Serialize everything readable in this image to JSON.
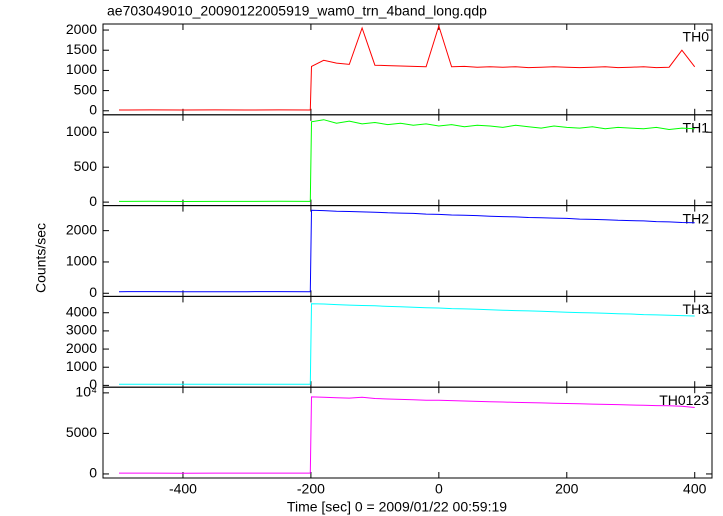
{
  "chart_data": [
    {
      "type": "line",
      "title": "ae703049010_20090122005919_wam0_trn_4band_long.qdp",
      "label": "TH0",
      "color": "#ff0000",
      "x": [
        -500,
        -450,
        -400,
        -350,
        -300,
        -250,
        -201,
        -199,
        -180,
        -160,
        -140,
        -120,
        -100,
        -80,
        -60,
        -40,
        -20,
        0,
        20,
        40,
        60,
        80,
        100,
        120,
        140,
        160,
        180,
        200,
        220,
        240,
        260,
        280,
        300,
        320,
        340,
        360,
        380,
        400
      ],
      "values": [
        20,
        22,
        19,
        21,
        20,
        22,
        20,
        1100,
        1250,
        1180,
        1150,
        2050,
        1130,
        1120,
        1110,
        1100,
        1090,
        2100,
        1090,
        1100,
        1080,
        1090,
        1080,
        1090,
        1070,
        1080,
        1090,
        1080,
        1070,
        1080,
        1090,
        1070,
        1080,
        1090,
        1070,
        1080,
        1500,
        1090
      ],
      "xlim": [
        -525,
        427
      ],
      "xticks": [
        -400,
        -200,
        0,
        200,
        400
      ],
      "ylim": [
        -100,
        2150
      ],
      "yticks": [
        0,
        500,
        1000,
        1500,
        2000
      ]
    },
    {
      "type": "line",
      "label": "TH1",
      "color": "#00ff00",
      "x": [
        -500,
        -450,
        -400,
        -350,
        -300,
        -250,
        -201,
        -199,
        -180,
        -160,
        -140,
        -120,
        -100,
        -80,
        -60,
        -40,
        -20,
        0,
        20,
        40,
        60,
        80,
        100,
        120,
        140,
        160,
        180,
        200,
        220,
        240,
        260,
        280,
        300,
        320,
        340,
        360,
        380,
        400
      ],
      "values": [
        10,
        11,
        9,
        10,
        10,
        11,
        10,
        1150,
        1180,
        1130,
        1160,
        1120,
        1140,
        1110,
        1130,
        1100,
        1120,
        1090,
        1110,
        1080,
        1100,
        1090,
        1070,
        1100,
        1080,
        1060,
        1090,
        1070,
        1060,
        1080,
        1050,
        1070,
        1060,
        1050,
        1070,
        1040,
        1060,
        1050
      ],
      "xlim": [
        -525,
        427
      ],
      "xticks": [
        -400,
        -200,
        0,
        200,
        400
      ],
      "ylim": [
        -50,
        1250
      ],
      "yticks": [
        0,
        500,
        1000
      ]
    },
    {
      "type": "line",
      "label": "TH2",
      "color": "#0000ff",
      "ylabel": "Counts/sec",
      "x": [
        -500,
        -450,
        -400,
        -350,
        -300,
        -250,
        -201,
        -199,
        -180,
        -160,
        -140,
        -120,
        -100,
        -80,
        -60,
        -40,
        -20,
        0,
        20,
        40,
        60,
        80,
        100,
        120,
        140,
        160,
        180,
        200,
        220,
        240,
        260,
        280,
        300,
        320,
        340,
        360,
        380,
        400
      ],
      "values": [
        50,
        52,
        49,
        51,
        50,
        52,
        50,
        2650,
        2640,
        2620,
        2610,
        2600,
        2590,
        2570,
        2560,
        2550,
        2530,
        2520,
        2500,
        2490,
        2480,
        2460,
        2450,
        2440,
        2420,
        2410,
        2400,
        2390,
        2370,
        2360,
        2350,
        2330,
        2320,
        2310,
        2290,
        2280,
        2260,
        2250
      ],
      "xlim": [
        -525,
        427
      ],
      "xticks": [
        -400,
        -200,
        0,
        200,
        400
      ],
      "ylim": [
        -100,
        2800
      ],
      "yticks": [
        0,
        1000,
        2000
      ]
    },
    {
      "type": "line",
      "label": "TH3",
      "color": "#00ffff",
      "x": [
        -500,
        -450,
        -400,
        -350,
        -300,
        -250,
        -201,
        -199,
        -180,
        -160,
        -140,
        -120,
        -100,
        -80,
        -60,
        -40,
        -20,
        0,
        20,
        40,
        60,
        80,
        100,
        120,
        140,
        160,
        180,
        200,
        220,
        240,
        260,
        280,
        300,
        320,
        340,
        360,
        380,
        400
      ],
      "values": [
        60,
        62,
        59,
        61,
        60,
        62,
        60,
        4500,
        4480,
        4450,
        4420,
        4400,
        4380,
        4350,
        4330,
        4300,
        4280,
        4260,
        4230,
        4210,
        4190,
        4160,
        4140,
        4120,
        4100,
        4080,
        4050,
        4030,
        4010,
        3990,
        3970,
        3950,
        3930,
        3900,
        3880,
        3860,
        3840,
        3820
      ],
      "xlim": [
        -525,
        427
      ],
      "xticks": [
        -400,
        -200,
        0,
        200,
        400
      ],
      "ylim": [
        -100,
        4900
      ],
      "yticks": [
        0,
        1000,
        2000,
        3000,
        4000
      ]
    },
    {
      "type": "line",
      "label": "TH0123",
      "color": "#ff00ff",
      "xlabel": "Time [sec] 0 = 2009/01/22 00:59:19",
      "x": [
        -500,
        -450,
        -400,
        -350,
        -300,
        -250,
        -201,
        -199,
        -180,
        -160,
        -140,
        -120,
        -100,
        -80,
        -60,
        -40,
        -20,
        0,
        20,
        40,
        60,
        80,
        100,
        120,
        140,
        160,
        180,
        200,
        220,
        240,
        260,
        280,
        300,
        320,
        340,
        360,
        380,
        400
      ],
      "values": [
        100,
        104,
        98,
        102,
        100,
        103,
        100,
        9500,
        9450,
        9400,
        9350,
        9450,
        9300,
        9250,
        9200,
        9150,
        9100,
        9100,
        9050,
        9000,
        8950,
        8900,
        8870,
        8830,
        8800,
        8760,
        8720,
        8690,
        8650,
        8620,
        8580,
        8550,
        8500,
        8470,
        8430,
        8400,
        8350,
        8200
      ],
      "xlim": [
        -525,
        427
      ],
      "xticks": [
        -400,
        -200,
        0,
        200,
        400
      ],
      "ylim": [
        -500,
        10700
      ],
      "yticks": [
        0,
        5000,
        {
          "value": 10000,
          "label": "10⁴"
        }
      ]
    }
  ]
}
